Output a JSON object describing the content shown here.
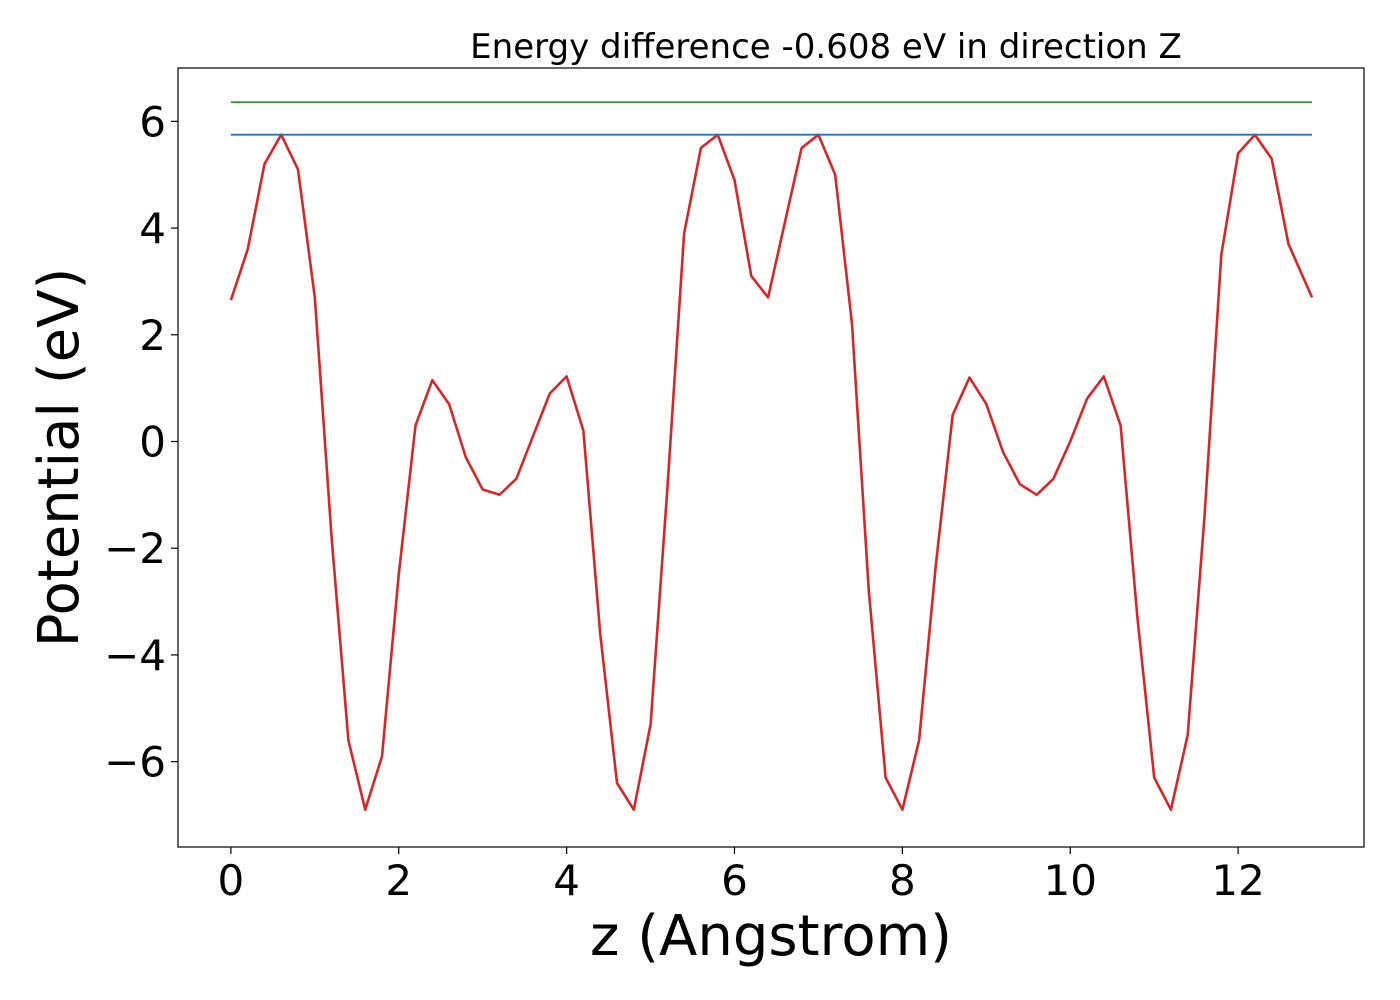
{
  "chart_data": {
    "type": "line",
    "title": "Energy difference -0.608 eV in direction Z",
    "xlabel": "z (Angstrom)",
    "ylabel": "Potential (eV)",
    "xlim": [
      -0.63,
      13.5
    ],
    "ylim": [
      -7.6,
      7.0
    ],
    "xticks": [
      0,
      2,
      4,
      6,
      8,
      10,
      12
    ],
    "yticks": [
      -6,
      -4,
      -2,
      0,
      2,
      4,
      6
    ],
    "xtick_labels": [
      "0",
      "2",
      "4",
      "6",
      "8",
      "10",
      "12"
    ],
    "ytick_labels": [
      "−6",
      "−4",
      "−2",
      "0",
      "2",
      "4",
      "6"
    ],
    "grid": false,
    "series": [
      {
        "color": "#d62728",
        "x": [
          0.0,
          0.2,
          0.4,
          0.6,
          0.8,
          1.0,
          1.2,
          1.4,
          1.6,
          1.8,
          2.0,
          2.2,
          2.4,
          2.6,
          2.8,
          3.0,
          3.2,
          3.4,
          3.6,
          3.8,
          4.0,
          4.2,
          4.4,
          4.6,
          4.8,
          5.0,
          5.2,
          5.4,
          5.6,
          5.8,
          6.0,
          6.2,
          6.4,
          6.6,
          6.8,
          7.0,
          7.2,
          7.4,
          7.6,
          7.8,
          8.0,
          8.2,
          8.4,
          8.6,
          8.8,
          9.0,
          9.2,
          9.4,
          9.6,
          9.8,
          10.0,
          10.2,
          10.4,
          10.6,
          10.8,
          11.0,
          11.2,
          11.4,
          11.6,
          11.8,
          12.0,
          12.2,
          12.4,
          12.6,
          12.88
        ],
        "y": [
          2.65,
          3.6,
          5.2,
          5.75,
          5.1,
          2.7,
          -1.8,
          -5.6,
          -6.9,
          -5.9,
          -2.5,
          0.3,
          1.15,
          0.7,
          -0.3,
          -0.9,
          -1.0,
          -0.7,
          0.1,
          0.9,
          1.22,
          0.2,
          -3.6,
          -6.4,
          -6.9,
          -5.3,
          -0.9,
          3.9,
          5.5,
          5.75,
          4.9,
          3.1,
          2.7,
          4.1,
          5.5,
          5.75,
          5.0,
          2.2,
          -2.8,
          -6.3,
          -6.9,
          -5.6,
          -2.3,
          0.5,
          1.2,
          0.7,
          -0.2,
          -0.8,
          -1.0,
          -0.7,
          0.0,
          0.8,
          1.22,
          0.3,
          -3.3,
          -6.3,
          -6.9,
          -5.5,
          -1.4,
          3.5,
          5.4,
          5.75,
          5.3,
          3.7,
          2.7
        ]
      },
      {
        "color": "#1f77b4",
        "x": [
          0.0,
          12.88
        ],
        "y": [
          5.75,
          5.75
        ]
      },
      {
        "color": "#2ca02c",
        "x": [
          0.0,
          12.88
        ],
        "y": [
          6.36,
          6.36
        ]
      }
    ]
  }
}
